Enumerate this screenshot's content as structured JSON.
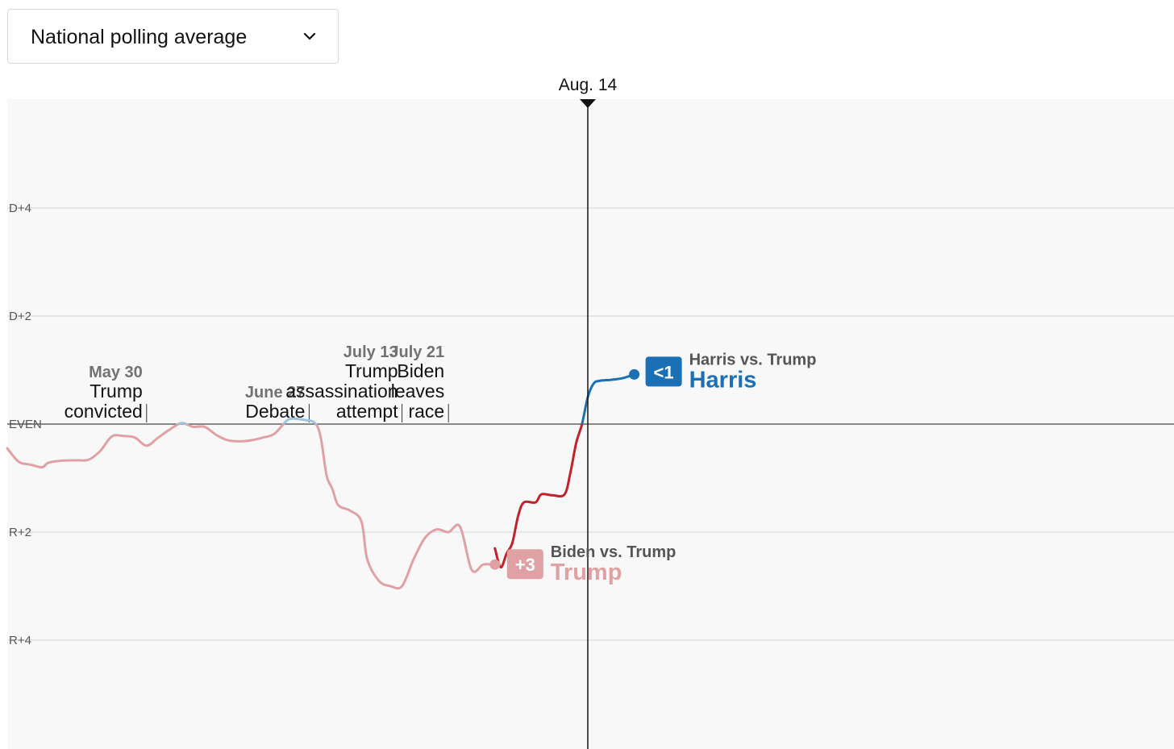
{
  "dropdown": {
    "label": "National polling average",
    "icon": "chevron-down-icon"
  },
  "chart_data": {
    "type": "line",
    "title": "",
    "xlabel": "",
    "ylabel": "",
    "ylim": [
      -6,
      6
    ],
    "xlim": [
      "2024-05-06",
      "2024-09-05"
    ],
    "grid": true,
    "y_ticks": [
      {
        "value": 4,
        "label": "D+4"
      },
      {
        "value": 2,
        "label": "D+2"
      },
      {
        "value": 0,
        "label": "EVEN"
      },
      {
        "value": -2,
        "label": "R+2"
      },
      {
        "value": -4,
        "label": "R+4"
      }
    ],
    "current_marker": {
      "date": "2024-08-14",
      "label": "Aug. 14"
    },
    "events": [
      {
        "date": "2024-05-30",
        "date_label": "May 30",
        "lines": [
          "Trump",
          "convicted"
        ]
      },
      {
        "date": "2024-06-27",
        "date_label": "June 27",
        "lines": [
          "Debate"
        ]
      },
      {
        "date": "2024-07-13",
        "date_label": "July 13",
        "lines": [
          "Trump",
          "assassination",
          "attempt"
        ]
      },
      {
        "date": "2024-07-21",
        "date_label": "July 21",
        "lines": [
          "Biden",
          "leaves",
          "race"
        ]
      }
    ],
    "series": [
      {
        "name": "Biden vs. Trump",
        "leader": "Trump",
        "margin_label": "+3",
        "color": "#e0a1a4",
        "lead_color": "#9ec3df",
        "points": [
          [
            "2024-05-06",
            -0.45
          ],
          [
            "2024-05-08",
            -0.7
          ],
          [
            "2024-05-10",
            -0.75
          ],
          [
            "2024-05-12",
            -0.8
          ],
          [
            "2024-05-13",
            -0.72
          ],
          [
            "2024-05-15",
            -0.68
          ],
          [
            "2024-05-18",
            -0.67
          ],
          [
            "2024-05-20",
            -0.66
          ],
          [
            "2024-05-22",
            -0.5
          ],
          [
            "2024-05-24",
            -0.23
          ],
          [
            "2024-05-26",
            -0.22
          ],
          [
            "2024-05-28",
            -0.25
          ],
          [
            "2024-05-30",
            -0.4
          ],
          [
            "2024-06-01",
            -0.25
          ],
          [
            "2024-06-03",
            -0.1
          ],
          [
            "2024-06-05",
            0.02
          ],
          [
            "2024-06-07",
            -0.05
          ],
          [
            "2024-06-09",
            -0.05
          ],
          [
            "2024-06-11",
            -0.2
          ],
          [
            "2024-06-13",
            -0.3
          ],
          [
            "2024-06-15",
            -0.32
          ],
          [
            "2024-06-17",
            -0.3
          ],
          [
            "2024-06-19",
            -0.25
          ],
          [
            "2024-06-21",
            -0.18
          ],
          [
            "2024-06-23",
            0.05
          ],
          [
            "2024-06-24",
            0.1
          ],
          [
            "2024-06-26",
            0.08
          ],
          [
            "2024-06-28",
            0.02
          ],
          [
            "2024-06-29",
            -0.25
          ],
          [
            "2024-06-30",
            -0.95
          ],
          [
            "2024-07-01",
            -1.2
          ],
          [
            "2024-07-02",
            -1.5
          ],
          [
            "2024-07-04",
            -1.6
          ],
          [
            "2024-07-06",
            -1.8
          ],
          [
            "2024-07-07",
            -2.5
          ],
          [
            "2024-07-09",
            -2.9
          ],
          [
            "2024-07-11",
            -3.0
          ],
          [
            "2024-07-13",
            -3.0
          ],
          [
            "2024-07-15",
            -2.5
          ],
          [
            "2024-07-17",
            -2.1
          ],
          [
            "2024-07-19",
            -1.95
          ],
          [
            "2024-07-21",
            -2.0
          ],
          [
            "2024-07-23",
            -1.9
          ],
          [
            "2024-07-25",
            -2.7
          ],
          [
            "2024-07-27",
            -2.6
          ],
          [
            "2024-07-29",
            -2.6
          ]
        ]
      },
      {
        "name": "Harris vs. Trump",
        "leader": "Harris",
        "margin_label": "<1",
        "color": "#1a6fb5",
        "trail_color": "#c4222b",
        "points": [
          [
            "2024-07-29",
            -2.3
          ],
          [
            "2024-07-30",
            -2.65
          ],
          [
            "2024-07-31",
            -2.4
          ],
          [
            "2024-08-01",
            -2.2
          ],
          [
            "2024-08-02",
            -1.7
          ],
          [
            "2024-08-03",
            -1.45
          ],
          [
            "2024-08-05",
            -1.45
          ],
          [
            "2024-08-06",
            -1.3
          ],
          [
            "2024-08-08",
            -1.32
          ],
          [
            "2024-08-10",
            -1.3
          ],
          [
            "2024-08-11",
            -0.9
          ],
          [
            "2024-08-12",
            -0.35
          ],
          [
            "2024-08-13",
            0.0
          ],
          [
            "2024-08-14",
            0.5
          ],
          [
            "2024-08-15",
            0.75
          ],
          [
            "2024-08-16",
            0.8
          ],
          [
            "2024-08-18",
            0.82
          ],
          [
            "2024-08-20",
            0.85
          ],
          [
            "2024-08-22",
            0.92
          ]
        ]
      }
    ]
  }
}
